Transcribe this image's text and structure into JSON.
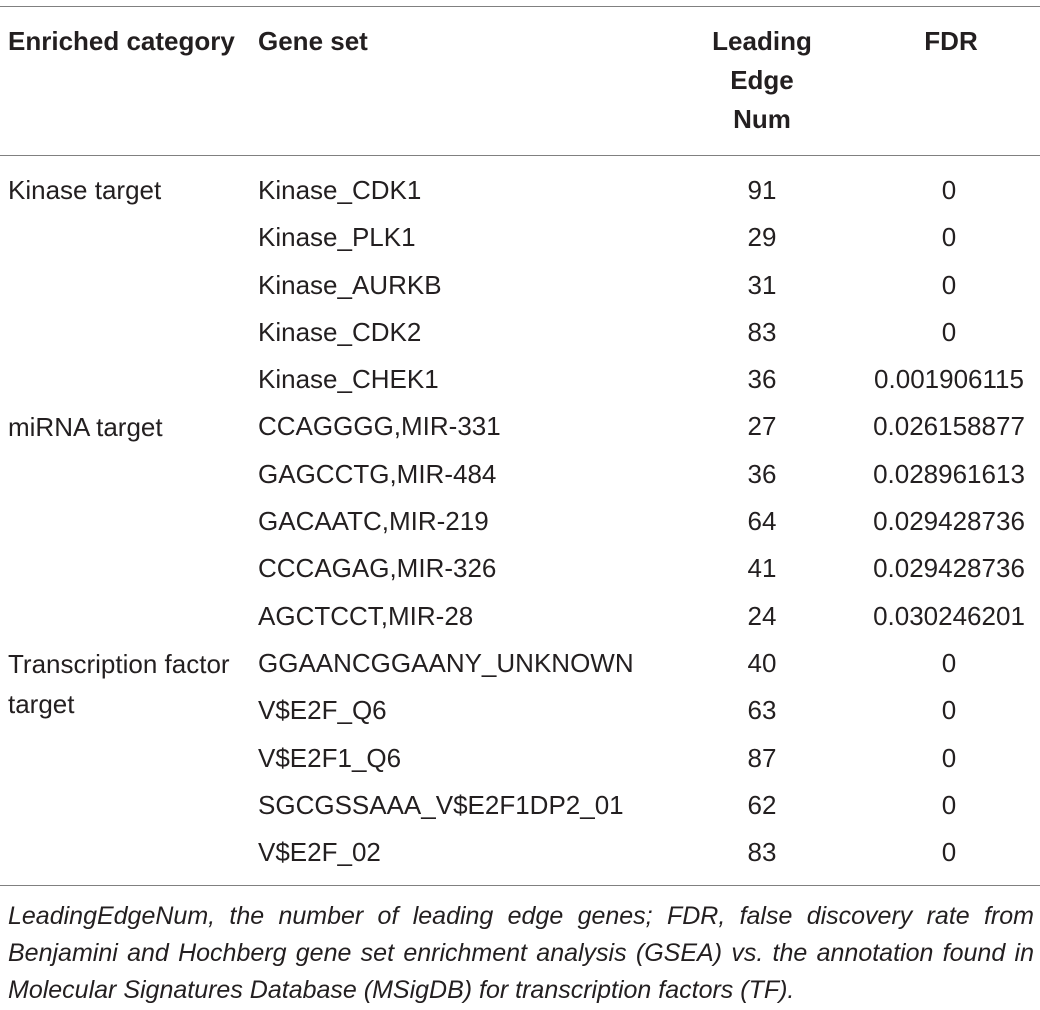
{
  "table": {
    "headers": {
      "category": "Enriched category",
      "gene_set": "Gene set",
      "leading_edge": "Leading Edge Num",
      "fdr": "FDR"
    },
    "categories": [
      "Kinase target",
      "miRNA target",
      "Transcription factor target"
    ],
    "rows": [
      {
        "gene_set": "Kinase_CDK1",
        "leading_edge": "91",
        "fdr": "0"
      },
      {
        "gene_set": "Kinase_PLK1",
        "leading_edge": "29",
        "fdr": "0"
      },
      {
        "gene_set": "Kinase_AURKB",
        "leading_edge": "31",
        "fdr": "0"
      },
      {
        "gene_set": "Kinase_CDK2",
        "leading_edge": "83",
        "fdr": "0"
      },
      {
        "gene_set": "Kinase_CHEK1",
        "leading_edge": "36",
        "fdr": "0.001906115"
      },
      {
        "gene_set": "CCAGGGG,MIR-331",
        "leading_edge": "27",
        "fdr": "0.026158877"
      },
      {
        "gene_set": "GAGCCTG,MIR-484",
        "leading_edge": "36",
        "fdr": "0.028961613"
      },
      {
        "gene_set": "GACAATC,MIR-219",
        "leading_edge": "64",
        "fdr": "0.029428736"
      },
      {
        "gene_set": "CCCAGAG,MIR-326",
        "leading_edge": "41",
        "fdr": "0.029428736"
      },
      {
        "gene_set": "AGCTCCT,MIR-28",
        "leading_edge": "24",
        "fdr": "0.030246201"
      },
      {
        "gene_set": "GGAANCGGAANY_UNKNOWN",
        "leading_edge": "40",
        "fdr": "0"
      },
      {
        "gene_set": "V$E2F_Q6",
        "leading_edge": "63",
        "fdr": "0"
      },
      {
        "gene_set": "V$E2F1_Q6",
        "leading_edge": "87",
        "fdr": "0"
      },
      {
        "gene_set": "SGCGSSAAA_V$E2F1DP2_01",
        "leading_edge": "62",
        "fdr": "0"
      },
      {
        "gene_set": "V$E2F_02",
        "leading_edge": "83",
        "fdr": "0"
      }
    ]
  },
  "footnote": "LeadingEdgeNum, the number of leading edge genes; FDR, false discovery rate from Benjamini and Hochberg gene set enrichment analysis (GSEA) vs. the annotation found in Molecular Signatures Database (MSigDB) for transcription factors (TF)."
}
